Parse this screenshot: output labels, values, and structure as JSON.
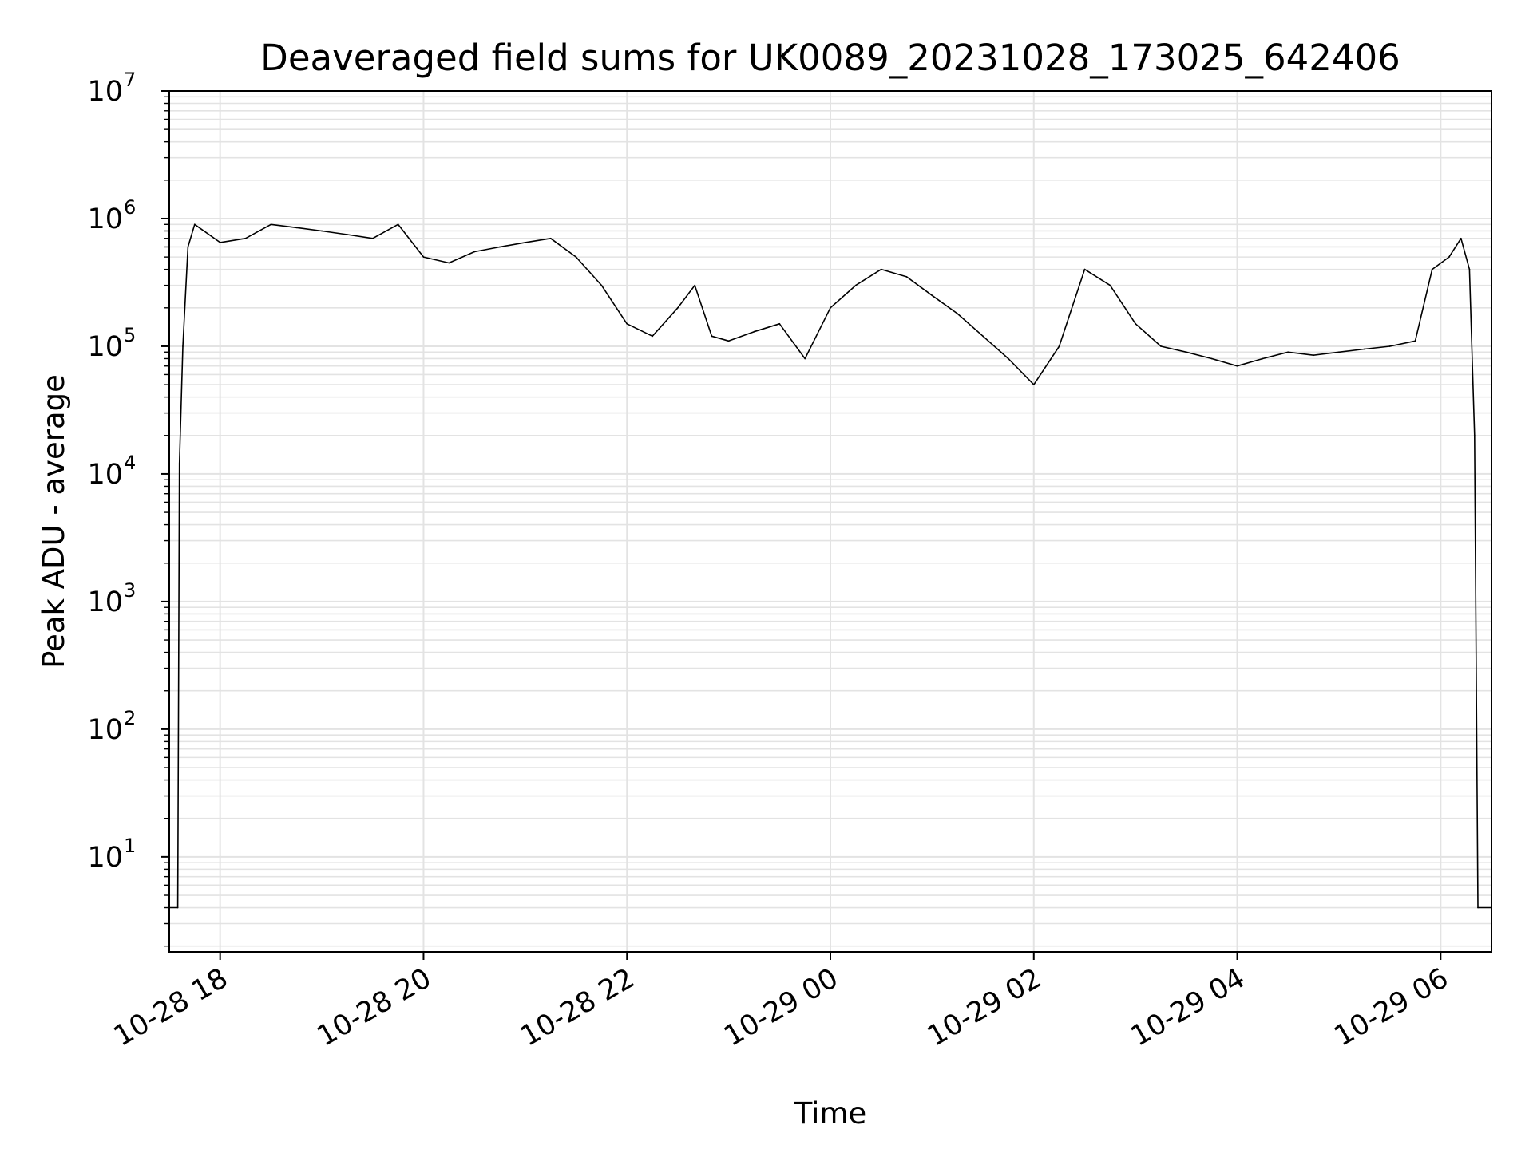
{
  "chart_data": {
    "type": "line",
    "title": "Deaveraged field sums for UK0089_20231028_173025_642406",
    "xlabel": "Time",
    "ylabel": "Peak ADU - average",
    "yscale": "log",
    "ylim": [
      1.8,
      10000000
    ],
    "xlim": [
      "2023-10-28T17:30:00",
      "2023-10-29T06:30:00"
    ],
    "grid": true,
    "x_ticks": [
      {
        "at": "2023-10-28T18:00:00",
        "label": "10-28 18"
      },
      {
        "at": "2023-10-28T20:00:00",
        "label": "10-28 20"
      },
      {
        "at": "2023-10-28T22:00:00",
        "label": "10-28 22"
      },
      {
        "at": "2023-10-29T00:00:00",
        "label": "10-29 00"
      },
      {
        "at": "2023-10-29T02:00:00",
        "label": "10-29 02"
      },
      {
        "at": "2023-10-29T04:00:00",
        "label": "10-29 04"
      },
      {
        "at": "2023-10-29T06:00:00",
        "label": "10-29 06"
      }
    ],
    "y_ticks": [
      {
        "value": 10,
        "base": "10",
        "exp": "1"
      },
      {
        "value": 100,
        "base": "10",
        "exp": "2"
      },
      {
        "value": 1000,
        "base": "10",
        "exp": "3"
      },
      {
        "value": 10000,
        "base": "10",
        "exp": "4"
      },
      {
        "value": 100000,
        "base": "10",
        "exp": "5"
      },
      {
        "value": 1000000,
        "base": "10",
        "exp": "6"
      },
      {
        "value": 10000000,
        "base": "10",
        "exp": "7"
      }
    ],
    "series": [
      {
        "color": "#000000",
        "points": [
          [
            "2023-10-28T17:30:00",
            4
          ],
          [
            "2023-10-28T17:35:00",
            4
          ],
          [
            "2023-10-28T17:36:00",
            12000
          ],
          [
            "2023-10-28T17:38:00",
            100000
          ],
          [
            "2023-10-28T17:41:00",
            600000
          ],
          [
            "2023-10-28T17:45:00",
            900000
          ],
          [
            "2023-10-28T18:00:00",
            650000
          ],
          [
            "2023-10-28T18:15:00",
            700000
          ],
          [
            "2023-10-28T18:30:00",
            900000
          ],
          [
            "2023-10-28T18:45:00",
            850000
          ],
          [
            "2023-10-28T19:00:00",
            800000
          ],
          [
            "2023-10-28T19:15:00",
            750000
          ],
          [
            "2023-10-28T19:30:00",
            700000
          ],
          [
            "2023-10-28T19:45:00",
            900000
          ],
          [
            "2023-10-28T20:00:00",
            500000
          ],
          [
            "2023-10-28T20:15:00",
            450000
          ],
          [
            "2023-10-28T20:30:00",
            550000
          ],
          [
            "2023-10-28T20:45:00",
            600000
          ],
          [
            "2023-10-28T21:00:00",
            650000
          ],
          [
            "2023-10-28T21:15:00",
            700000
          ],
          [
            "2023-10-28T21:30:00",
            500000
          ],
          [
            "2023-10-28T21:45:00",
            300000
          ],
          [
            "2023-10-28T22:00:00",
            150000
          ],
          [
            "2023-10-28T22:15:00",
            120000
          ],
          [
            "2023-10-28T22:30:00",
            200000
          ],
          [
            "2023-10-28T22:40:00",
            300000
          ],
          [
            "2023-10-28T22:50:00",
            120000
          ],
          [
            "2023-10-28T23:00:00",
            110000
          ],
          [
            "2023-10-28T23:15:00",
            130000
          ],
          [
            "2023-10-28T23:30:00",
            150000
          ],
          [
            "2023-10-28T23:45:00",
            80000
          ],
          [
            "2023-10-29T00:00:00",
            200000
          ],
          [
            "2023-10-29T00:15:00",
            300000
          ],
          [
            "2023-10-29T00:30:00",
            400000
          ],
          [
            "2023-10-29T00:45:00",
            350000
          ],
          [
            "2023-10-29T01:00:00",
            250000
          ],
          [
            "2023-10-29T01:15:00",
            180000
          ],
          [
            "2023-10-29T01:30:00",
            120000
          ],
          [
            "2023-10-29T01:45:00",
            80000
          ],
          [
            "2023-10-29T02:00:00",
            50000
          ],
          [
            "2023-10-29T02:15:00",
            100000
          ],
          [
            "2023-10-29T02:30:00",
            400000
          ],
          [
            "2023-10-29T02:45:00",
            300000
          ],
          [
            "2023-10-29T03:00:00",
            150000
          ],
          [
            "2023-10-29T03:15:00",
            100000
          ],
          [
            "2023-10-29T03:30:00",
            90000
          ],
          [
            "2023-10-29T03:45:00",
            80000
          ],
          [
            "2023-10-29T04:00:00",
            70000
          ],
          [
            "2023-10-29T04:15:00",
            80000
          ],
          [
            "2023-10-29T04:30:00",
            90000
          ],
          [
            "2023-10-29T04:45:00",
            85000
          ],
          [
            "2023-10-29T05:00:00",
            90000
          ],
          [
            "2023-10-29T05:15:00",
            95000
          ],
          [
            "2023-10-29T05:30:00",
            100000
          ],
          [
            "2023-10-29T05:45:00",
            110000
          ],
          [
            "2023-10-29T05:55:00",
            400000
          ],
          [
            "2023-10-29T06:05:00",
            500000
          ],
          [
            "2023-10-29T06:12:00",
            700000
          ],
          [
            "2023-10-29T06:17:00",
            400000
          ],
          [
            "2023-10-29T06:20:00",
            20000
          ],
          [
            "2023-10-29T06:22:00",
            4
          ],
          [
            "2023-10-29T06:30:00",
            4
          ]
        ]
      }
    ]
  }
}
